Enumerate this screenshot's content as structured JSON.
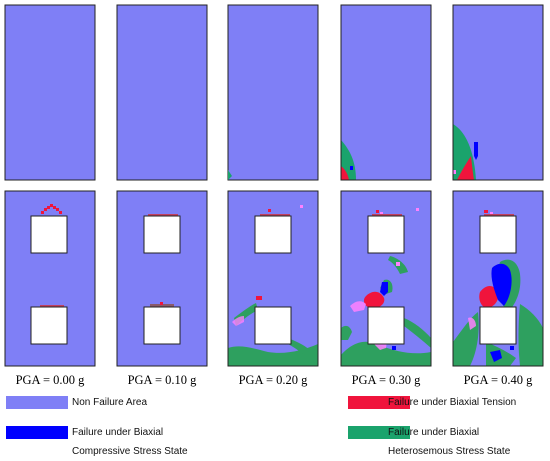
{
  "colors": {
    "non_failure": "#7f7ff6",
    "biaxial_tension": "#f0143c",
    "biaxial_compressive": "#0000ff",
    "heterosemous": "#1aa36c",
    "pink_mix": "#ff80ff",
    "green_mix": "#2ea05f",
    "hole": "#ffffff",
    "border": "#222222"
  },
  "captions": [
    "PGA = 0.00 g",
    "PGA = 0.10 g",
    "PGA = 0.20 g",
    "PGA = 0.30 g",
    "PGA = 0.40 g"
  ],
  "legend": {
    "non_failure": "Non Failure Area",
    "tension": "Failure under Biaxial Tension",
    "compressive_line1": "Failure under Biaxial",
    "compressive_line2": "Compressive Stress State",
    "heterosemous_line1": "Failure under Biaxial",
    "heterosemous_line2": "Heterosemous Stress State"
  },
  "panel_icons": [
    "solid-wall-panel",
    "wall-with-openings-panel"
  ]
}
